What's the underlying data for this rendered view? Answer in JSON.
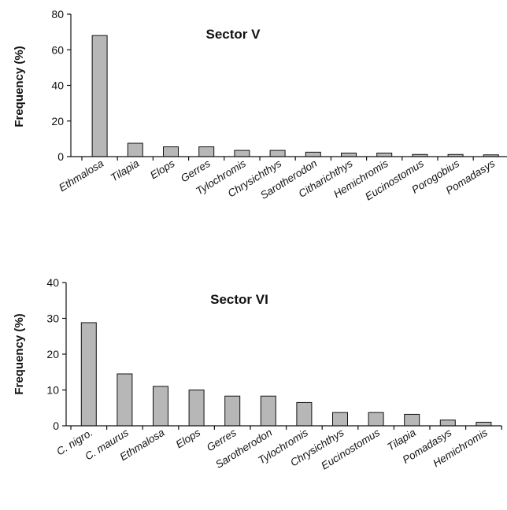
{
  "colors": {
    "bar_fill": "#b7b7b7",
    "bar_stroke": "#111111",
    "axis": "#111111",
    "background": "#ffffff"
  },
  "chart_data": [
    {
      "type": "bar",
      "title": "Sector V",
      "ylabel": "Frequency (%)",
      "xlabel": "",
      "ylim": [
        0,
        80
      ],
      "yticks": [
        0,
        20,
        40,
        60,
        80
      ],
      "grid": false,
      "categories": [
        "Ethmalosa",
        "Tilapia",
        "Elops",
        "Gerres",
        "Tylochromis",
        "Chrysichthys",
        "Sarotherodon",
        "Citharichthys",
        "Hemichromis",
        "Eucinostomus",
        "Porogobius",
        "Pomadasys"
      ],
      "values": [
        68,
        7.5,
        5.5,
        5.5,
        3.5,
        3.5,
        2.5,
        2,
        2,
        1.2,
        1.2,
        1
      ]
    },
    {
      "type": "bar",
      "title": "Sector VI",
      "ylabel": "Frequency (%)",
      "xlabel": "",
      "ylim": [
        0,
        40
      ],
      "yticks": [
        0,
        10,
        20,
        30,
        40
      ],
      "grid": false,
      "categories": [
        "C. nigro.",
        "C. maurus",
        "Ethmalosa",
        "Elops",
        "Gerres",
        "Sarotherodon",
        "Tylochromis",
        "Chrysichthys",
        "Eucinostomus",
        "Tilapia",
        "Pomadasys",
        "Hemichromis"
      ],
      "values": [
        28.8,
        14.5,
        11,
        10,
        8.3,
        8.3,
        6.5,
        3.7,
        3.7,
        3.2,
        1.6,
        1
      ]
    }
  ]
}
